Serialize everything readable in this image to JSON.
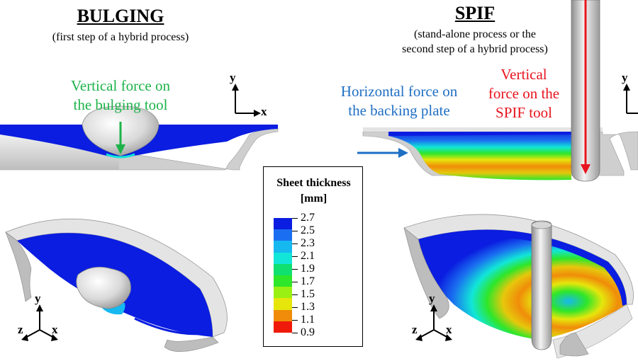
{
  "left": {
    "title": "BULGING",
    "subtitle": "(first step of a hybrid process)",
    "force_label_line1": "Vertical force on",
    "force_label_line2": "the bulging tool"
  },
  "right": {
    "title": "SPIF",
    "subtitle_line1": "(stand-alone process or the",
    "subtitle_line2": "second step of a hybrid process)",
    "horizontal_label_line1": "Horizontal force on",
    "horizontal_label_line2": "the backing plate",
    "vertical_label_line1": "Vertical",
    "vertical_label_line2": "force on the",
    "vertical_label_line3": "SPIF tool"
  },
  "axes": {
    "x": "x",
    "y": "y",
    "z": "z"
  },
  "legend": {
    "title_line1": "Sheet thickness",
    "title_line2": "[mm]",
    "ticks": [
      "2.7",
      "2.5",
      "2.3",
      "2.1",
      "1.9",
      "1.7",
      "1.5",
      "1.3",
      "1.1",
      "0.9"
    ],
    "colors": [
      "#0a1de0",
      "#1a6ff0",
      "#16b8f0",
      "#12e6d8",
      "#10e070",
      "#2ee62a",
      "#9af012",
      "#e6e60c",
      "#f08c0a",
      "#f01a0a"
    ]
  },
  "colors": {
    "green_arrow": "#1db34a",
    "blue_arrow": "#1f6fc4",
    "red_arrow": "#e8141e",
    "sheet_blue": "#0a1de0",
    "tool_grey": "#c8c8c8"
  }
}
